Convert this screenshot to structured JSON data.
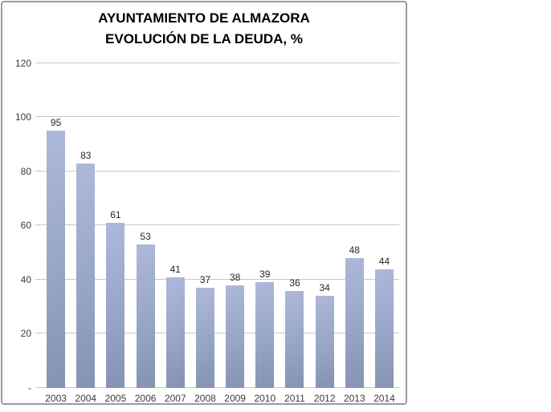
{
  "title": {
    "line1": "AYUNTAMIENTO DE ALMAZORA",
    "line2": "EVOLUCIÓN DE LA DEUDA, %"
  },
  "chart_data": {
    "type": "bar",
    "title": "AYUNTAMIENTO DE ALMAZORA — EVOLUCIÓN DE LA DEUDA, %",
    "categories": [
      "2003",
      "2004",
      "2005",
      "2006",
      "2007",
      "2008",
      "2009",
      "2010",
      "2011",
      "2012",
      "2013",
      "2014"
    ],
    "values": [
      95,
      83,
      61,
      53,
      41,
      37,
      38,
      39,
      36,
      34,
      48,
      44
    ],
    "xlabel": "",
    "ylabel": "",
    "ylim": [
      0,
      120
    ],
    "ytick_step": 20,
    "ytick_labels_bottom_to_top": [
      "-",
      "20",
      "40",
      "60",
      "80",
      "100",
      "120"
    ],
    "grid": true,
    "legend": false,
    "data_labels": true
  },
  "colors": {
    "bar_gradient_top": "#aeb9da",
    "bar_gradient_mid": "#97a5c6",
    "bar_gradient_bottom": "#8593b2",
    "gridline": "#c8c8c8",
    "frame_border": "#9b9b9b",
    "axis_text": "#3a3a3a",
    "value_label_text": "#262626",
    "title_text": "#000000",
    "background": "#ffffff"
  }
}
